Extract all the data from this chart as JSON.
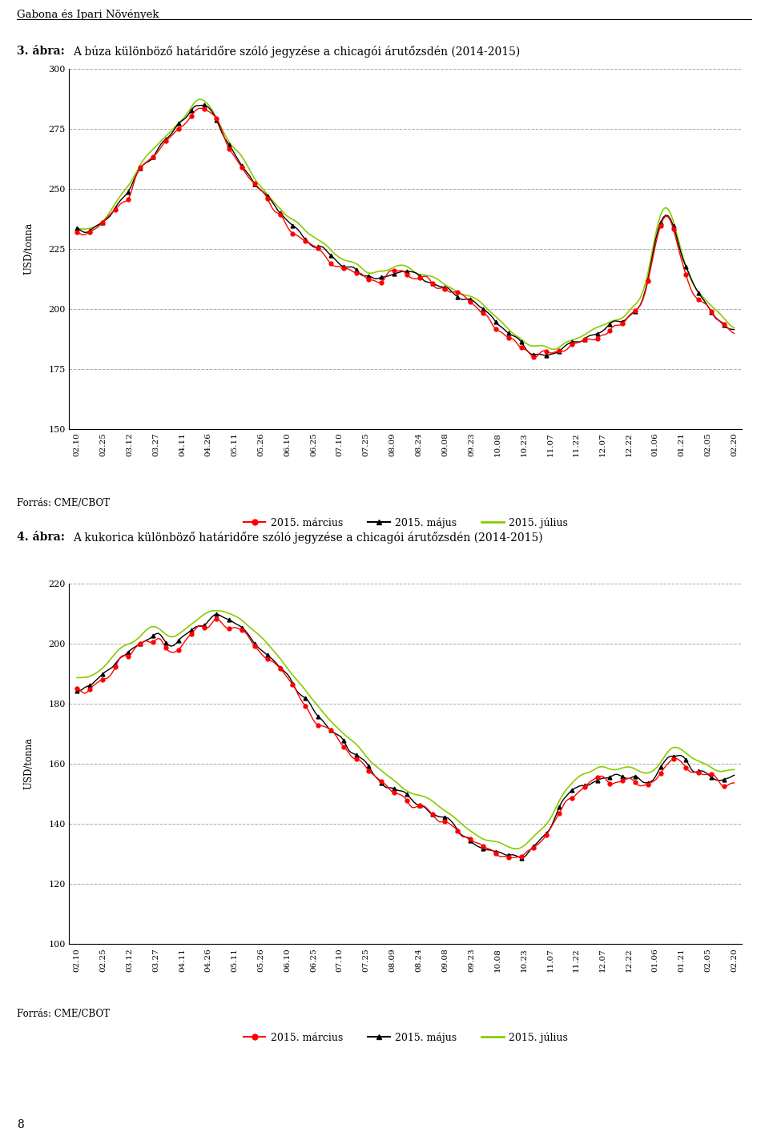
{
  "page_title": "Gabona és Ipari Növények",
  "chart1_label": "3. ábra:",
  "chart1_title": "A búza különböző határidőre szóló jegyzése a chicagói árutőzsdén (2014-2015)",
  "chart2_label": "4. ábra:",
  "chart2_title": "A kukorica különböző határidőre szóló jegyzése a chicagói árutőzsdén (2014-2015)",
  "xlabel_ticks": [
    "02.10",
    "02.25",
    "03.12",
    "03.27",
    "04.11",
    "04.26",
    "05.11",
    "05.26",
    "06.10",
    "06.25",
    "07.10",
    "07.25",
    "08.09",
    "08.24",
    "09.08",
    "09.23",
    "10.08",
    "10.23",
    "11.07",
    "11.22",
    "12.07",
    "12.22",
    "01.06",
    "01.21",
    "02.05",
    "02.20"
  ],
  "ylabel": "USD/tonna",
  "legend_labels": [
    "2015. március",
    "2015. május",
    "2015. július"
  ],
  "source_text": "Forrás: CME/CBOT",
  "page_number": "8",
  "chart1_ylim": [
    150,
    300
  ],
  "chart1_yticks": [
    150,
    175,
    200,
    225,
    250,
    275,
    300
  ],
  "chart2_ylim": [
    100,
    220
  ],
  "chart2_yticks": [
    100,
    120,
    140,
    160,
    180,
    200,
    220
  ],
  "background_color": "#ffffff",
  "grid_color": "#aaaaaa",
  "line_color_march": "#ff0000",
  "line_color_may": "#000000",
  "line_color_july": "#88cc00"
}
